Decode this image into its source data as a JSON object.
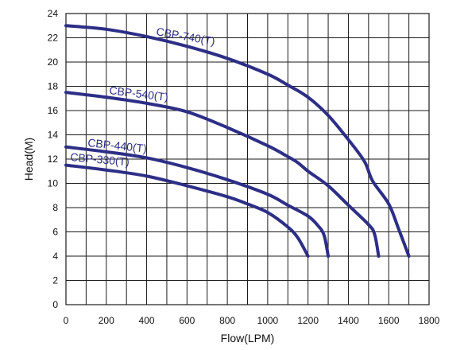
{
  "chart_data": {
    "type": "line",
    "xlabel": "Flow(LPM)",
    "ylabel": "Head(M)",
    "xlim": [
      0,
      1800
    ],
    "ylim": [
      0,
      24
    ],
    "x_ticks": [
      0,
      200,
      400,
      600,
      800,
      1000,
      1200,
      1400,
      1600,
      1800
    ],
    "y_ticks": [
      0,
      2,
      4,
      6,
      8,
      10,
      12,
      14,
      16,
      18,
      20,
      22,
      24
    ],
    "grid": true,
    "line_color": "#2d2e86",
    "series": [
      {
        "name": "CBP-740(T)",
        "points": [
          [
            0,
            23
          ],
          [
            200,
            22.7
          ],
          [
            400,
            22.1
          ],
          [
            600,
            21.3
          ],
          [
            800,
            20.3
          ],
          [
            1000,
            19
          ],
          [
            1100,
            18.1
          ],
          [
            1200,
            17.1
          ],
          [
            1300,
            15.6
          ],
          [
            1400,
            13.6
          ],
          [
            1480,
            11.8
          ],
          [
            1520,
            10.2
          ],
          [
            1600,
            8.3
          ],
          [
            1650,
            6.2
          ],
          [
            1700,
            4
          ]
        ],
        "label_at": [
          1500,
          23.8
        ]
      },
      {
        "name": "CBP-540(T)",
        "points": [
          [
            0,
            17.5
          ],
          [
            200,
            17.1
          ],
          [
            400,
            16.6
          ],
          [
            600,
            15.9
          ],
          [
            800,
            14.6
          ],
          [
            1000,
            13.1
          ],
          [
            1100,
            12.2
          ],
          [
            1150,
            11.7
          ],
          [
            1200,
            11
          ],
          [
            1300,
            9.8
          ],
          [
            1400,
            8.2
          ],
          [
            1500,
            6.6
          ],
          [
            1530,
            5.8
          ],
          [
            1550,
            4
          ]
        ],
        "label_at": [
          1500,
          19
        ]
      },
      {
        "name": "CBP-440(T)",
        "points": [
          [
            0,
            13
          ],
          [
            200,
            12.6
          ],
          [
            400,
            12.1
          ],
          [
            600,
            11.3
          ],
          [
            800,
            10.3
          ],
          [
            1000,
            9.1
          ],
          [
            1100,
            8.2
          ],
          [
            1200,
            7.3
          ],
          [
            1250,
            6.5
          ],
          [
            1280,
            5.7
          ],
          [
            1300,
            4
          ]
        ],
        "label_at": [
          1500,
          14.6
        ]
      },
      {
        "name": "CBP-330(T)",
        "points": [
          [
            0,
            11.5
          ],
          [
            200,
            11.1
          ],
          [
            400,
            10.6
          ],
          [
            600,
            9.8
          ],
          [
            800,
            8.9
          ],
          [
            900,
            8.3
          ],
          [
            1000,
            7.6
          ],
          [
            1100,
            6.4
          ],
          [
            1150,
            5.5
          ],
          [
            1200,
            4
          ]
        ],
        "label_at": [
          1500,
          12.5
        ]
      }
    ]
  }
}
